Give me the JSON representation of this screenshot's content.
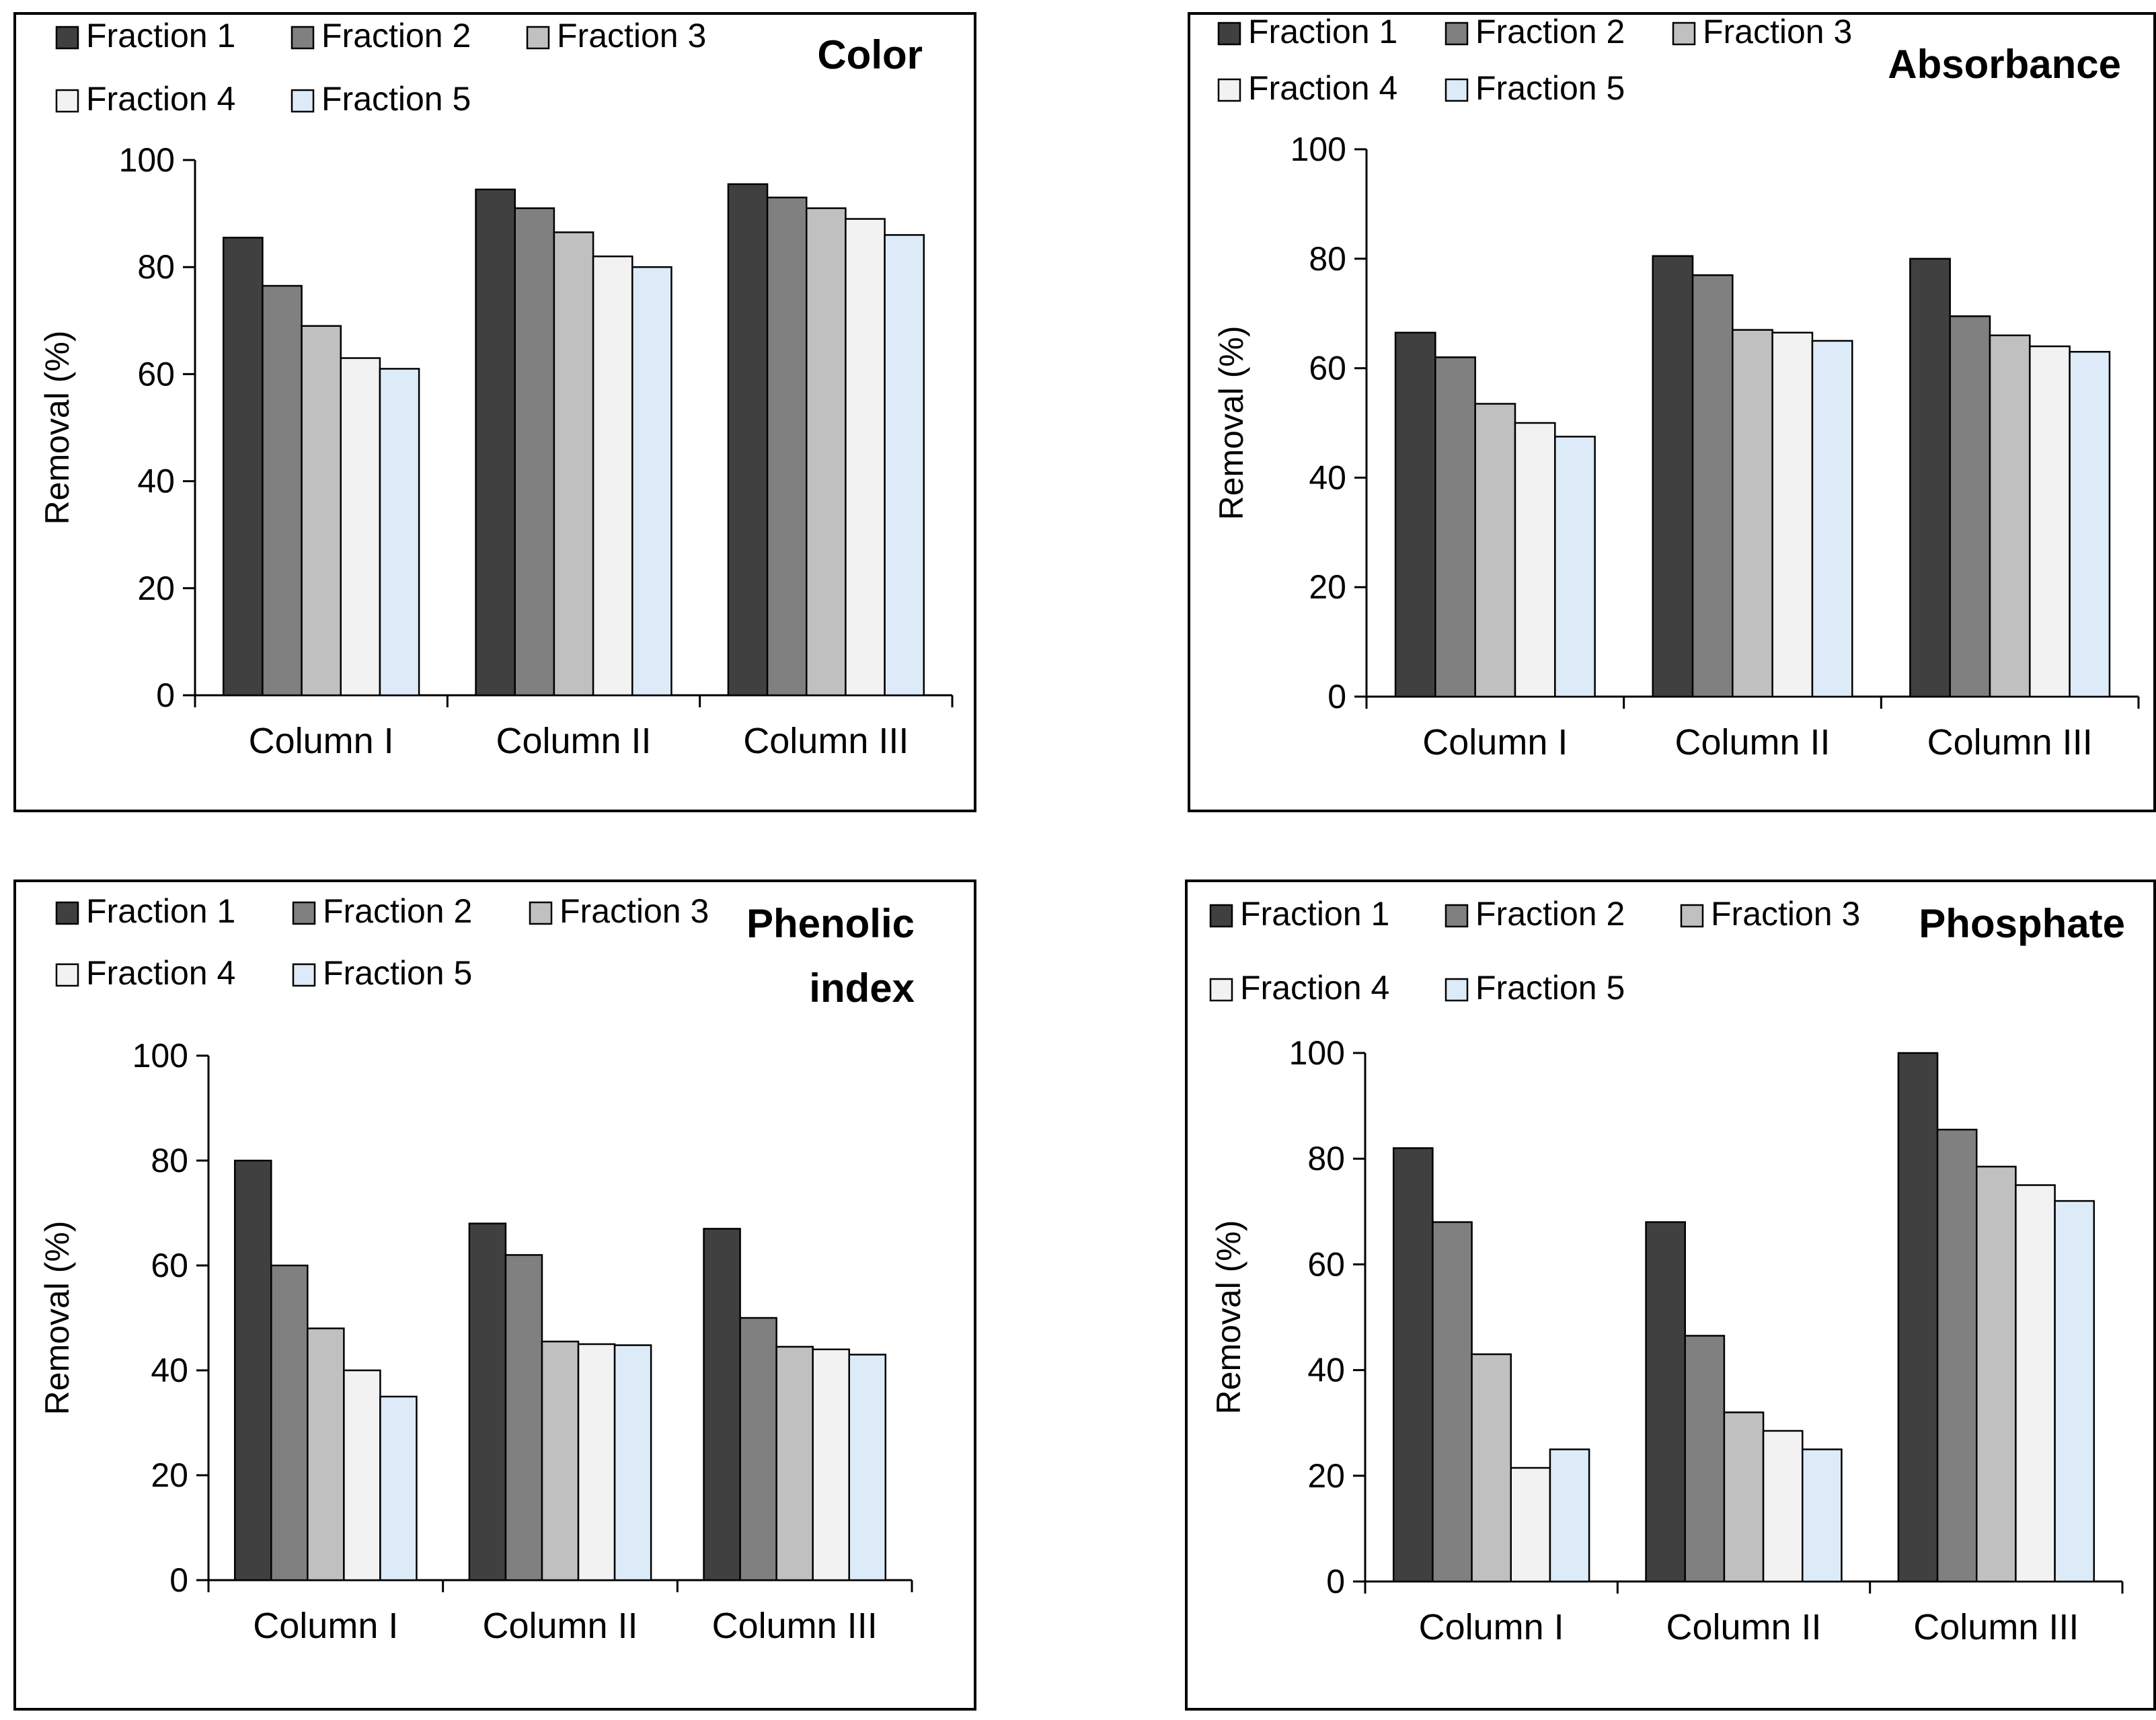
{
  "chart_data": [
    {
      "type": "bar",
      "title": "Color",
      "categories": [
        "Column I",
        "Column II",
        "Column III"
      ],
      "ylabel": "Removal (%)",
      "ylim": [
        0,
        100
      ],
      "yticks": [
        "0",
        "20",
        "40",
        "60",
        "80",
        "100"
      ],
      "legend_position": "top-left",
      "series": [
        {
          "name": "Fraction 1",
          "values": [
            85.5,
            94.5,
            95.5
          ]
        },
        {
          "name": "Fraction 2",
          "values": [
            76.5,
            91,
            93
          ]
        },
        {
          "name": "Fraction 3",
          "values": [
            69,
            86.5,
            91
          ]
        },
        {
          "name": "Fraction 4",
          "values": [
            63,
            82,
            89
          ]
        },
        {
          "name": "Fraction 5",
          "values": [
            61,
            80,
            86
          ]
        }
      ]
    },
    {
      "type": "bar",
      "title": "Absorbance",
      "categories": [
        "Column I",
        "Column II",
        "Column III"
      ],
      "ylabel": "Removal (%)",
      "ylim": [
        0,
        100
      ],
      "yticks": [
        "0",
        "20",
        "40",
        "60",
        "80",
        "100"
      ],
      "legend_position": "top-left",
      "series": [
        {
          "name": "Fraction 1",
          "values": [
            66.5,
            80.5,
            80
          ]
        },
        {
          "name": "Fraction 2",
          "values": [
            62,
            77,
            69.5
          ]
        },
        {
          "name": "Fraction 3",
          "values": [
            53.5,
            67,
            66
          ]
        },
        {
          "name": "Fraction 4",
          "values": [
            50,
            66.5,
            64
          ]
        },
        {
          "name": "Fraction 5",
          "values": [
            47.5,
            65,
            63
          ]
        }
      ]
    },
    {
      "type": "bar",
      "title": "Phenolic index",
      "title_lines": [
        "Phenolic",
        "index"
      ],
      "categories": [
        "Column I",
        "Column II",
        "Column III"
      ],
      "ylabel": "Removal (%)",
      "ylim": [
        0,
        100
      ],
      "yticks": [
        "0",
        "20",
        "40",
        "60",
        "80",
        "100"
      ],
      "legend_position": "top-left",
      "series": [
        {
          "name": "Fraction 1",
          "values": [
            80,
            68,
            67
          ]
        },
        {
          "name": "Fraction 2",
          "values": [
            60,
            62,
            50
          ]
        },
        {
          "name": "Fraction 3",
          "values": [
            48,
            45.5,
            44.5
          ]
        },
        {
          "name": "Fraction 4",
          "values": [
            40,
            45,
            44
          ]
        },
        {
          "name": "Fraction 5",
          "values": [
            35,
            44.8,
            43
          ]
        }
      ]
    },
    {
      "type": "bar",
      "title": "Phosphate",
      "categories": [
        "Column I",
        "Column II",
        "Column III"
      ],
      "ylabel": "Removal (%)",
      "ylim": [
        0,
        100
      ],
      "yticks": [
        "0",
        "20",
        "40",
        "60",
        "80",
        "100"
      ],
      "legend_position": "top-left",
      "series": [
        {
          "name": "Fraction 1",
          "values": [
            82,
            68,
            100
          ]
        },
        {
          "name": "Fraction 2",
          "values": [
            68,
            46.5,
            85.5
          ]
        },
        {
          "name": "Fraction 3",
          "values": [
            43,
            32,
            78.5
          ]
        },
        {
          "name": "Fraction 4",
          "values": [
            21.5,
            28.5,
            75
          ]
        },
        {
          "name": "Fraction 5",
          "values": [
            25,
            25,
            72
          ]
        }
      ]
    }
  ],
  "colors": {
    "series": [
      "#404040",
      "#808080",
      "#c0c0c0",
      "#f2f2f2",
      "#dcebf7"
    ],
    "outline": "#000000",
    "axis": "#000000"
  }
}
